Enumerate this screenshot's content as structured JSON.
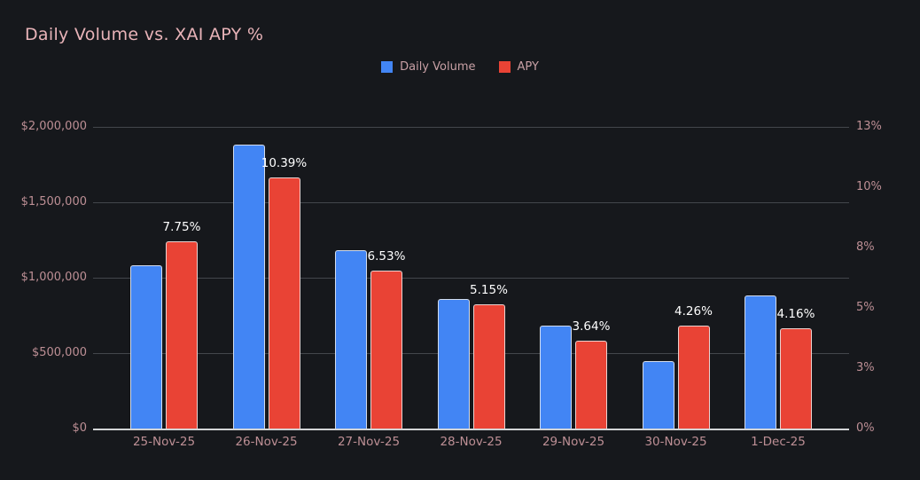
{
  "title": "Daily Volume vs. XAI APY %",
  "legend": {
    "items": [
      {
        "label": "Daily Volume",
        "color": "#4285f4"
      },
      {
        "label": "APY",
        "color": "#e94335"
      }
    ]
  },
  "colors": {
    "background": "#16181c",
    "title_text": "#e8b3b8",
    "tick_text": "#bd8f95",
    "legend_text": "#c8a0a5",
    "gridline": "#43464c",
    "zero_line": "#d2d4d6",
    "bar_stroke": "#ebebeb",
    "data_label_text": "#ffffff",
    "volume_bar": "#4285f4",
    "apy_bar": "#e94335"
  },
  "chart_data": {
    "type": "bar",
    "title": "Daily Volume vs. XAI APY %",
    "categories": [
      "25-Nov-25",
      "26-Nov-25",
      "27-Nov-25",
      "28-Nov-25",
      "29-Nov-25",
      "30-Nov-25",
      "1-Dec-25"
    ],
    "series": [
      {
        "name": "Daily Volume",
        "axis": "left",
        "color": "#4285f4",
        "values": [
          1080000,
          1885000,
          1180000,
          860000,
          685000,
          445000,
          880000
        ]
      },
      {
        "name": "APY",
        "axis": "right",
        "color": "#e94335",
        "values": [
          7.75,
          10.39,
          6.53,
          5.15,
          3.64,
          4.26,
          4.16
        ],
        "data_labels": [
          "7.75%",
          "10.39%",
          "6.53%",
          "5.15%",
          "3.64%",
          "4.26%",
          "4.16%"
        ]
      }
    ],
    "left_axis": {
      "min": 0,
      "max": 2000000,
      "tick_labels": [
        "$0",
        "$500,000",
        "$1,000,000",
        "$1,500,000",
        "$2,000,000"
      ]
    },
    "right_axis": {
      "min": 0,
      "max": 12.5,
      "tick_labels": [
        "0%",
        "3%",
        "5%",
        "8%",
        "10%",
        "13%"
      ]
    },
    "grid": "horizontal",
    "legend_position": "top-center"
  }
}
